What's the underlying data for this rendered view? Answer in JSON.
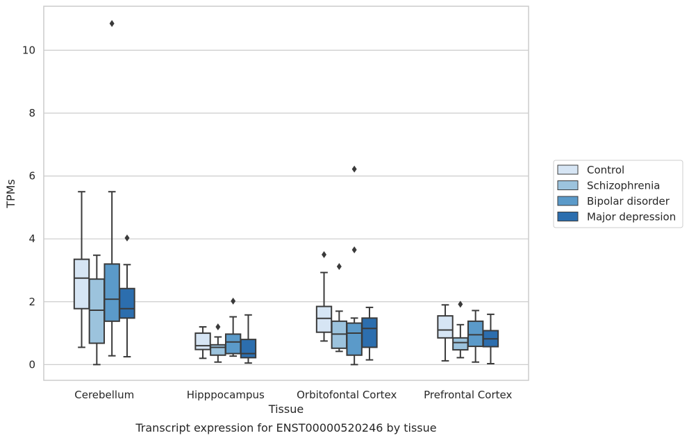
{
  "chart_data": {
    "type": "boxplot",
    "xlabel": "Tissue",
    "ylabel": "TPMs",
    "caption": "Transcript expression for ENST00000520246 by tissue",
    "ylim": [
      -0.5,
      11.4
    ],
    "yticks": [
      "0",
      "2",
      "4",
      "6",
      "8",
      "10"
    ],
    "grid": "horizontal",
    "legend_position": "right",
    "categories": [
      "Cerebellum",
      "Hipppocampus",
      "Orbitofontal Cortex",
      "Prefrontal Cortex"
    ],
    "series": [
      {
        "name": "Control",
        "color": "#d6e5f4",
        "boxes": [
          {
            "whislo": 0.55,
            "q1": 1.78,
            "med": 2.75,
            "q3": 3.35,
            "whishi": 5.5,
            "fliers": []
          },
          {
            "whislo": 0.2,
            "q1": 0.48,
            "med": 0.6,
            "q3": 1.0,
            "whishi": 1.2,
            "fliers": []
          },
          {
            "whislo": 0.75,
            "q1": 1.03,
            "med": 1.47,
            "q3": 1.85,
            "whishi": 2.93,
            "fliers": [
              3.5
            ]
          },
          {
            "whislo": 0.12,
            "q1": 0.85,
            "med": 1.1,
            "q3": 1.55,
            "whishi": 1.9,
            "fliers": []
          }
        ]
      },
      {
        "name": "Schizophrenia",
        "color": "#9cc3dd",
        "boxes": [
          {
            "whislo": 0.0,
            "q1": 0.68,
            "med": 1.73,
            "q3": 2.72,
            "whishi": 3.48,
            "fliers": []
          },
          {
            "whislo": 0.08,
            "q1": 0.3,
            "med": 0.55,
            "q3": 0.63,
            "whishi": 0.88,
            "fliers": [
              1.2
            ]
          },
          {
            "whislo": 0.42,
            "q1": 0.52,
            "med": 0.97,
            "q3": 1.38,
            "whishi": 1.7,
            "fliers": [
              3.12
            ]
          },
          {
            "whislo": 0.22,
            "q1": 0.47,
            "med": 0.7,
            "q3": 0.85,
            "whishi": 1.27,
            "fliers": [
              1.92
            ]
          }
        ]
      },
      {
        "name": "Bipolar disorder",
        "color": "#5b9ac9",
        "boxes": [
          {
            "whislo": 0.28,
            "q1": 1.38,
            "med": 2.08,
            "q3": 3.2,
            "whishi": 5.5,
            "fliers": [
              10.85
            ]
          },
          {
            "whislo": 0.27,
            "q1": 0.35,
            "med": 0.72,
            "q3": 0.97,
            "whishi": 1.52,
            "fliers": [
              2.02
            ]
          },
          {
            "whislo": 0.0,
            "q1": 0.3,
            "med": 1.0,
            "q3": 1.32,
            "whishi": 1.48,
            "fliers": [
              3.65,
              6.22
            ]
          },
          {
            "whislo": 0.08,
            "q1": 0.58,
            "med": 0.95,
            "q3": 1.38,
            "whishi": 1.72,
            "fliers": []
          }
        ]
      },
      {
        "name": "Major depression",
        "color": "#2c6eae",
        "boxes": [
          {
            "whislo": 0.25,
            "q1": 1.48,
            "med": 1.78,
            "q3": 2.42,
            "whishi": 3.18,
            "fliers": [
              4.03
            ]
          },
          {
            "whislo": 0.05,
            "q1": 0.22,
            "med": 0.35,
            "q3": 0.8,
            "whishi": 1.58,
            "fliers": []
          },
          {
            "whislo": 0.15,
            "q1": 0.55,
            "med": 1.15,
            "q3": 1.48,
            "whishi": 1.82,
            "fliers": []
          },
          {
            "whislo": 0.03,
            "q1": 0.57,
            "med": 0.82,
            "q3": 1.08,
            "whishi": 1.6,
            "fliers": []
          }
        ]
      }
    ]
  }
}
